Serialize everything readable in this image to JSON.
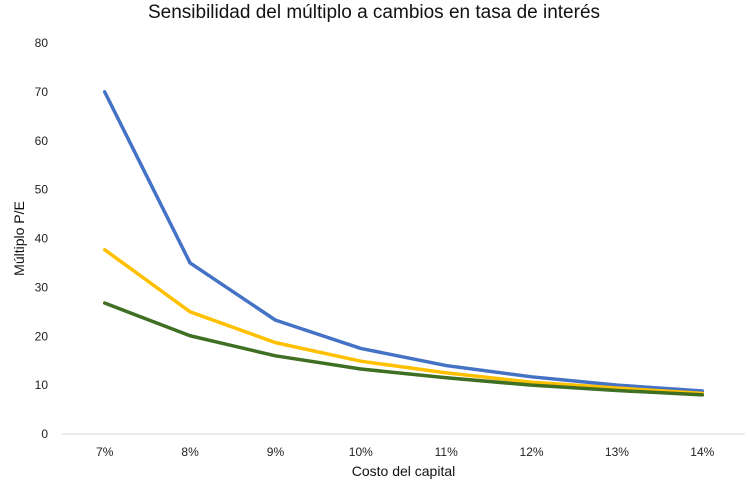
{
  "chart_data": {
    "type": "line",
    "title": "Sensibilidad del múltiplo a cambios en tasa de interés",
    "xlabel": "Costo del capital",
    "ylabel": "Múltiplo P/E",
    "categories": [
      "7%",
      "8%",
      "9%",
      "10%",
      "11%",
      "12%",
      "13%",
      "14%"
    ],
    "ylim": [
      0,
      80
    ],
    "yticks": [
      0,
      10,
      20,
      30,
      40,
      50,
      60,
      70,
      80
    ],
    "grid": false,
    "legend": "none",
    "series": [
      {
        "color": "#4472C4",
        "values": [
          70.0,
          35.0,
          23.3,
          17.5,
          14.0,
          11.7,
          10.0,
          8.8
        ]
      },
      {
        "color": "#FFC000",
        "values": [
          37.7,
          25.0,
          18.7,
          14.9,
          12.5,
          10.6,
          9.4,
          8.3
        ]
      },
      {
        "color": "#3F6F22",
        "values": [
          26.8,
          20.1,
          16.0,
          13.3,
          11.5,
          10.0,
          8.9,
          8.0
        ]
      }
    ]
  }
}
